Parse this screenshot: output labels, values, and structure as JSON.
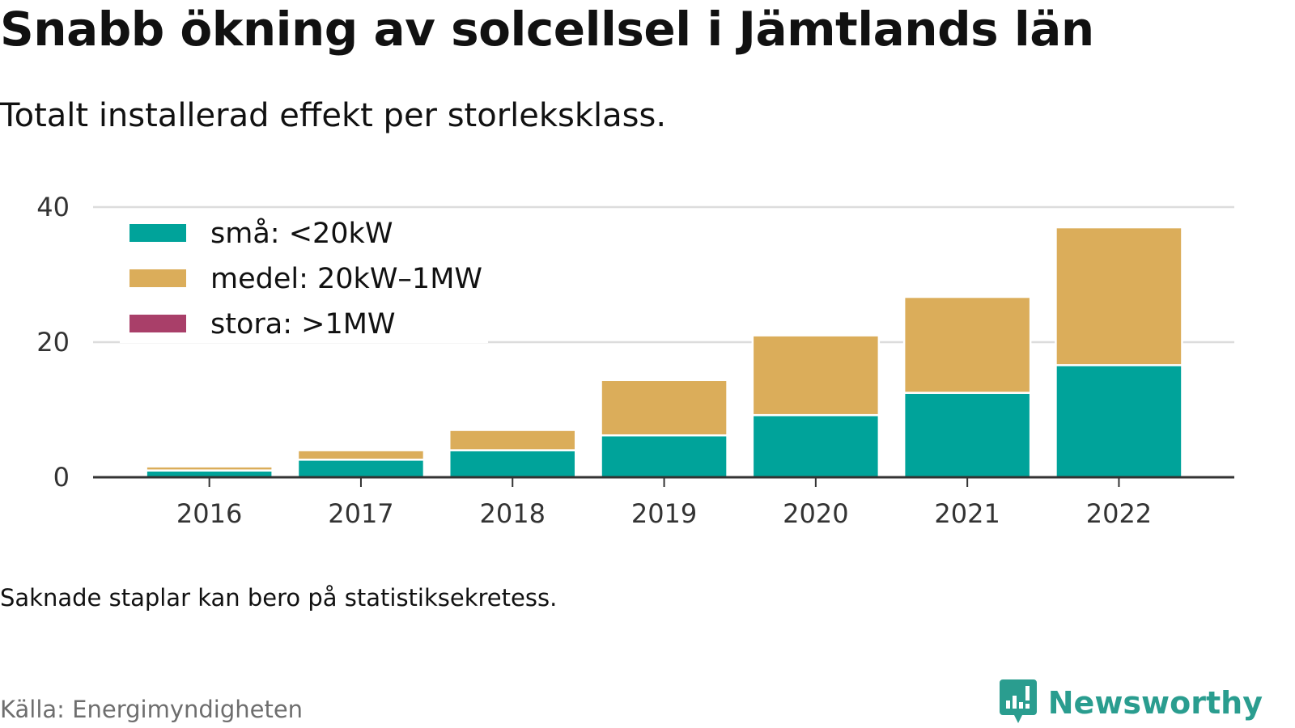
{
  "title": "Snabb ökning av solcellsel i Jämtlands län",
  "subtitle": "Totalt installerad effekt per storleksklass.",
  "note": "Saknade staplar kan bero på statistiksekretess.",
  "source": "Källa: Energimyndigheten",
  "brand": {
    "name": "Newsworthy",
    "icon": "bar-chart-speech-bubble-icon",
    "color": "#2a9d8f"
  },
  "chart_data": {
    "type": "bar",
    "stacked": true,
    "categories": [
      "2016",
      "2017",
      "2018",
      "2019",
      "2020",
      "2021",
      "2022"
    ],
    "series": [
      {
        "name": "små: <20kW",
        "color": "#00a39a",
        "values": [
          1.0,
          2.6,
          4.0,
          6.2,
          9.2,
          12.5,
          16.6
        ]
      },
      {
        "name": "medel: 20kW–1MW",
        "color": "#dbad5a",
        "values": [
          0.6,
          1.4,
          3.0,
          8.2,
          11.8,
          14.2,
          20.4
        ]
      },
      {
        "name": "stora: >1MW",
        "color": "#a93f69",
        "values": [
          0,
          0,
          0,
          0,
          0,
          0,
          0
        ]
      }
    ],
    "ylim": [
      0,
      40
    ],
    "yticks": [
      0,
      20,
      40
    ],
    "grid": true,
    "legend_position": "top-left"
  }
}
